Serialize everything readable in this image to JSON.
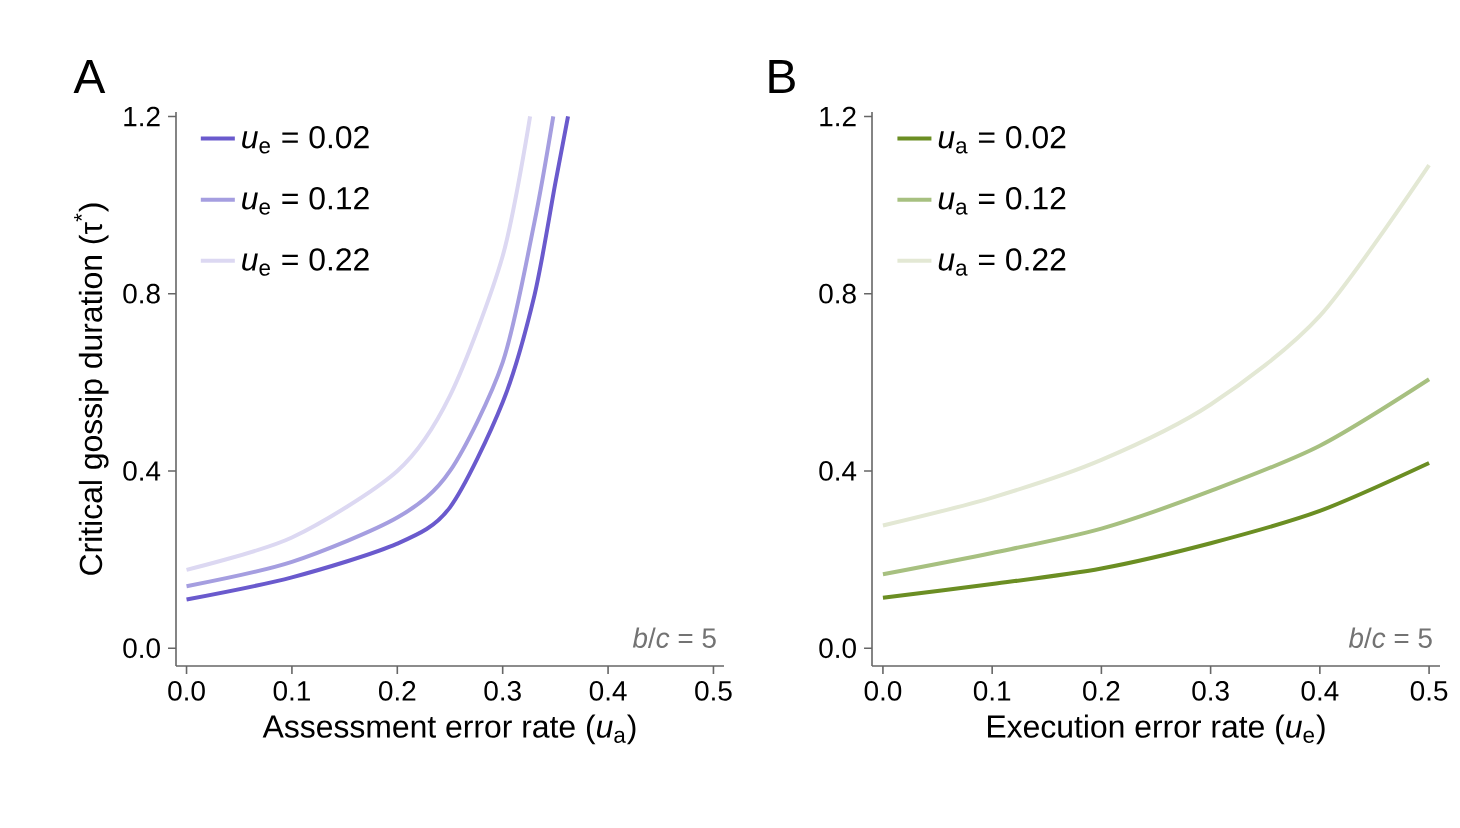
{
  "chart_data": [
    {
      "type": "line",
      "title": "A",
      "xlabel": "Assessment error rate (*u*$_{a}$)",
      "ylabel": "Critical gossip duration (τ$^{*}$)",
      "annotations": [
        "*b*/*c* = 5"
      ],
      "xlim": [
        -0.01,
        0.51
      ],
      "ylim": [
        -0.04,
        1.21
      ],
      "xticks": [
        {
          "value": 0,
          "label": "0.0"
        },
        {
          "value": 0.1,
          "label": "0.1"
        },
        {
          "value": 0.2,
          "label": "0.2"
        },
        {
          "value": 0.3,
          "label": "0.3"
        },
        {
          "value": 0.4,
          "label": "0.4"
        },
        {
          "value": 0.5,
          "label": "0.5"
        }
      ],
      "yticks": [
        {
          "value": 0,
          "label": "0.0"
        },
        {
          "value": 0.4,
          "label": "0.4"
        },
        {
          "value": 0.8,
          "label": "0.8"
        },
        {
          "value": 1.2,
          "label": "1.2"
        }
      ],
      "grid": false,
      "legend": "top left",
      "line_style": "solid",
      "marker": "none",
      "series": [
        {
          "name": "*u*$_{e}$ = 0.02",
          "color": "#6a5acd",
          "x": [
            0,
            0.1,
            0.2,
            0.25,
            0.3,
            0.33,
            0.35,
            0.362
          ],
          "values": [
            0.11,
            0.16,
            0.236,
            0.318,
            0.555,
            0.795,
            1.05,
            1.2
          ]
        },
        {
          "name": "*u*$_{e}$ = 0.12",
          "color": "#a59ee0",
          "x": [
            0,
            0.1,
            0.2,
            0.25,
            0.3,
            0.33,
            0.348
          ],
          "values": [
            0.14,
            0.195,
            0.295,
            0.4,
            0.645,
            0.96,
            1.2
          ]
        },
        {
          "name": "*u*$_{e}$ = 0.22",
          "color": "#dcd8f2",
          "x": [
            0,
            0.1,
            0.2,
            0.25,
            0.3,
            0.326
          ],
          "values": [
            0.177,
            0.25,
            0.4,
            0.57,
            0.885,
            1.2
          ]
        }
      ]
    },
    {
      "type": "line",
      "title": "B",
      "xlabel": "Execution error rate (*u*$_{e}$)",
      "annotations": [
        "*b*/*c* = 5"
      ],
      "xlim": [
        -0.01,
        0.51
      ],
      "ylim": [
        -0.04,
        1.21
      ],
      "xticks": [
        {
          "value": 0,
          "label": "0.0"
        },
        {
          "value": 0.1,
          "label": "0.1"
        },
        {
          "value": 0.2,
          "label": "0.2"
        },
        {
          "value": 0.3,
          "label": "0.3"
        },
        {
          "value": 0.4,
          "label": "0.4"
        },
        {
          "value": 0.5,
          "label": "0.5"
        }
      ],
      "yticks": [
        {
          "value": 0,
          "label": "0.0"
        },
        {
          "value": 0.4,
          "label": "0.4"
        },
        {
          "value": 0.8,
          "label": "0.8"
        },
        {
          "value": 1.2,
          "label": "1.2"
        }
      ],
      "grid": false,
      "legend": "top left",
      "line_style": "solid",
      "marker": "none",
      "series": [
        {
          "name": "*u*$_{a}$ = 0.02",
          "color": "#6b8e23",
          "x": [
            0,
            0.1,
            0.2,
            0.3,
            0.4,
            0.5
          ],
          "values": [
            0.114,
            0.145,
            0.18,
            0.237,
            0.31,
            0.418
          ]
        },
        {
          "name": "*u*$_{a}$ = 0.12",
          "color": "#a7c080",
          "x": [
            0,
            0.1,
            0.2,
            0.3,
            0.4,
            0.5
          ],
          "values": [
            0.167,
            0.215,
            0.27,
            0.355,
            0.457,
            0.607
          ]
        },
        {
          "name": "*u*$_{a}$ = 0.22",
          "color": "#e3e8d4",
          "x": [
            0,
            0.1,
            0.2,
            0.3,
            0.4,
            0.5
          ],
          "values": [
            0.277,
            0.34,
            0.425,
            0.55,
            0.75,
            1.09
          ]
        }
      ]
    }
  ]
}
